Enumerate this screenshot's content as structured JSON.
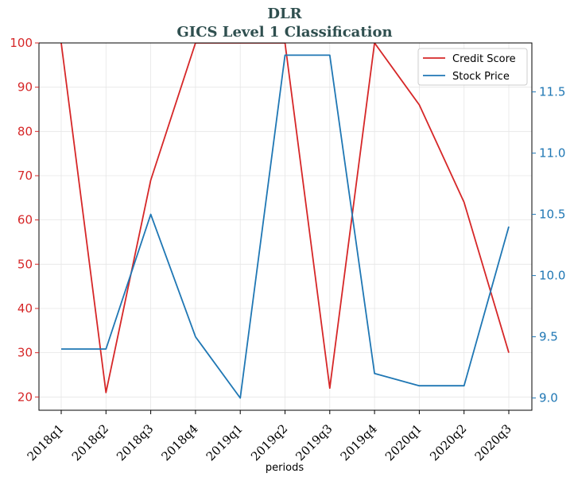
{
  "chart_data": {
    "type": "line",
    "title": "DLR",
    "subtitle": "GICS Level 1 Classification",
    "xlabel": "periods",
    "categories": [
      "2018q1",
      "2018q2",
      "2018q3",
      "2018q4",
      "2019q1",
      "2019q2",
      "2019q3",
      "2019q4",
      "2020q1",
      "2020q2",
      "2020q3"
    ],
    "left_axis": {
      "ylim": [
        17,
        100
      ],
      "ticks": [
        "20",
        "30",
        "40",
        "50",
        "60",
        "70",
        "80",
        "90",
        "100"
      ],
      "color": "#d62728"
    },
    "right_axis": {
      "ylim": [
        8.9,
        11.9
      ],
      "ticks": [
        "9.0",
        "9.5",
        "10.0",
        "10.5",
        "11.0",
        "11.5"
      ],
      "color": "#1f77b4"
    },
    "series": [
      {
        "name": "Credit Score",
        "axis": "left",
        "color": "#d62728",
        "values": [
          100,
          21,
          69,
          100,
          100,
          100,
          22,
          100,
          86,
          64,
          30
        ]
      },
      {
        "name": "Stock Price",
        "axis": "right",
        "color": "#1f77b4",
        "values": [
          9.4,
          9.4,
          10.5,
          9.5,
          9.0,
          11.8,
          11.8,
          9.2,
          9.1,
          9.1,
          10.4
        ]
      }
    ],
    "grid": true,
    "legend_position": "top-right"
  }
}
